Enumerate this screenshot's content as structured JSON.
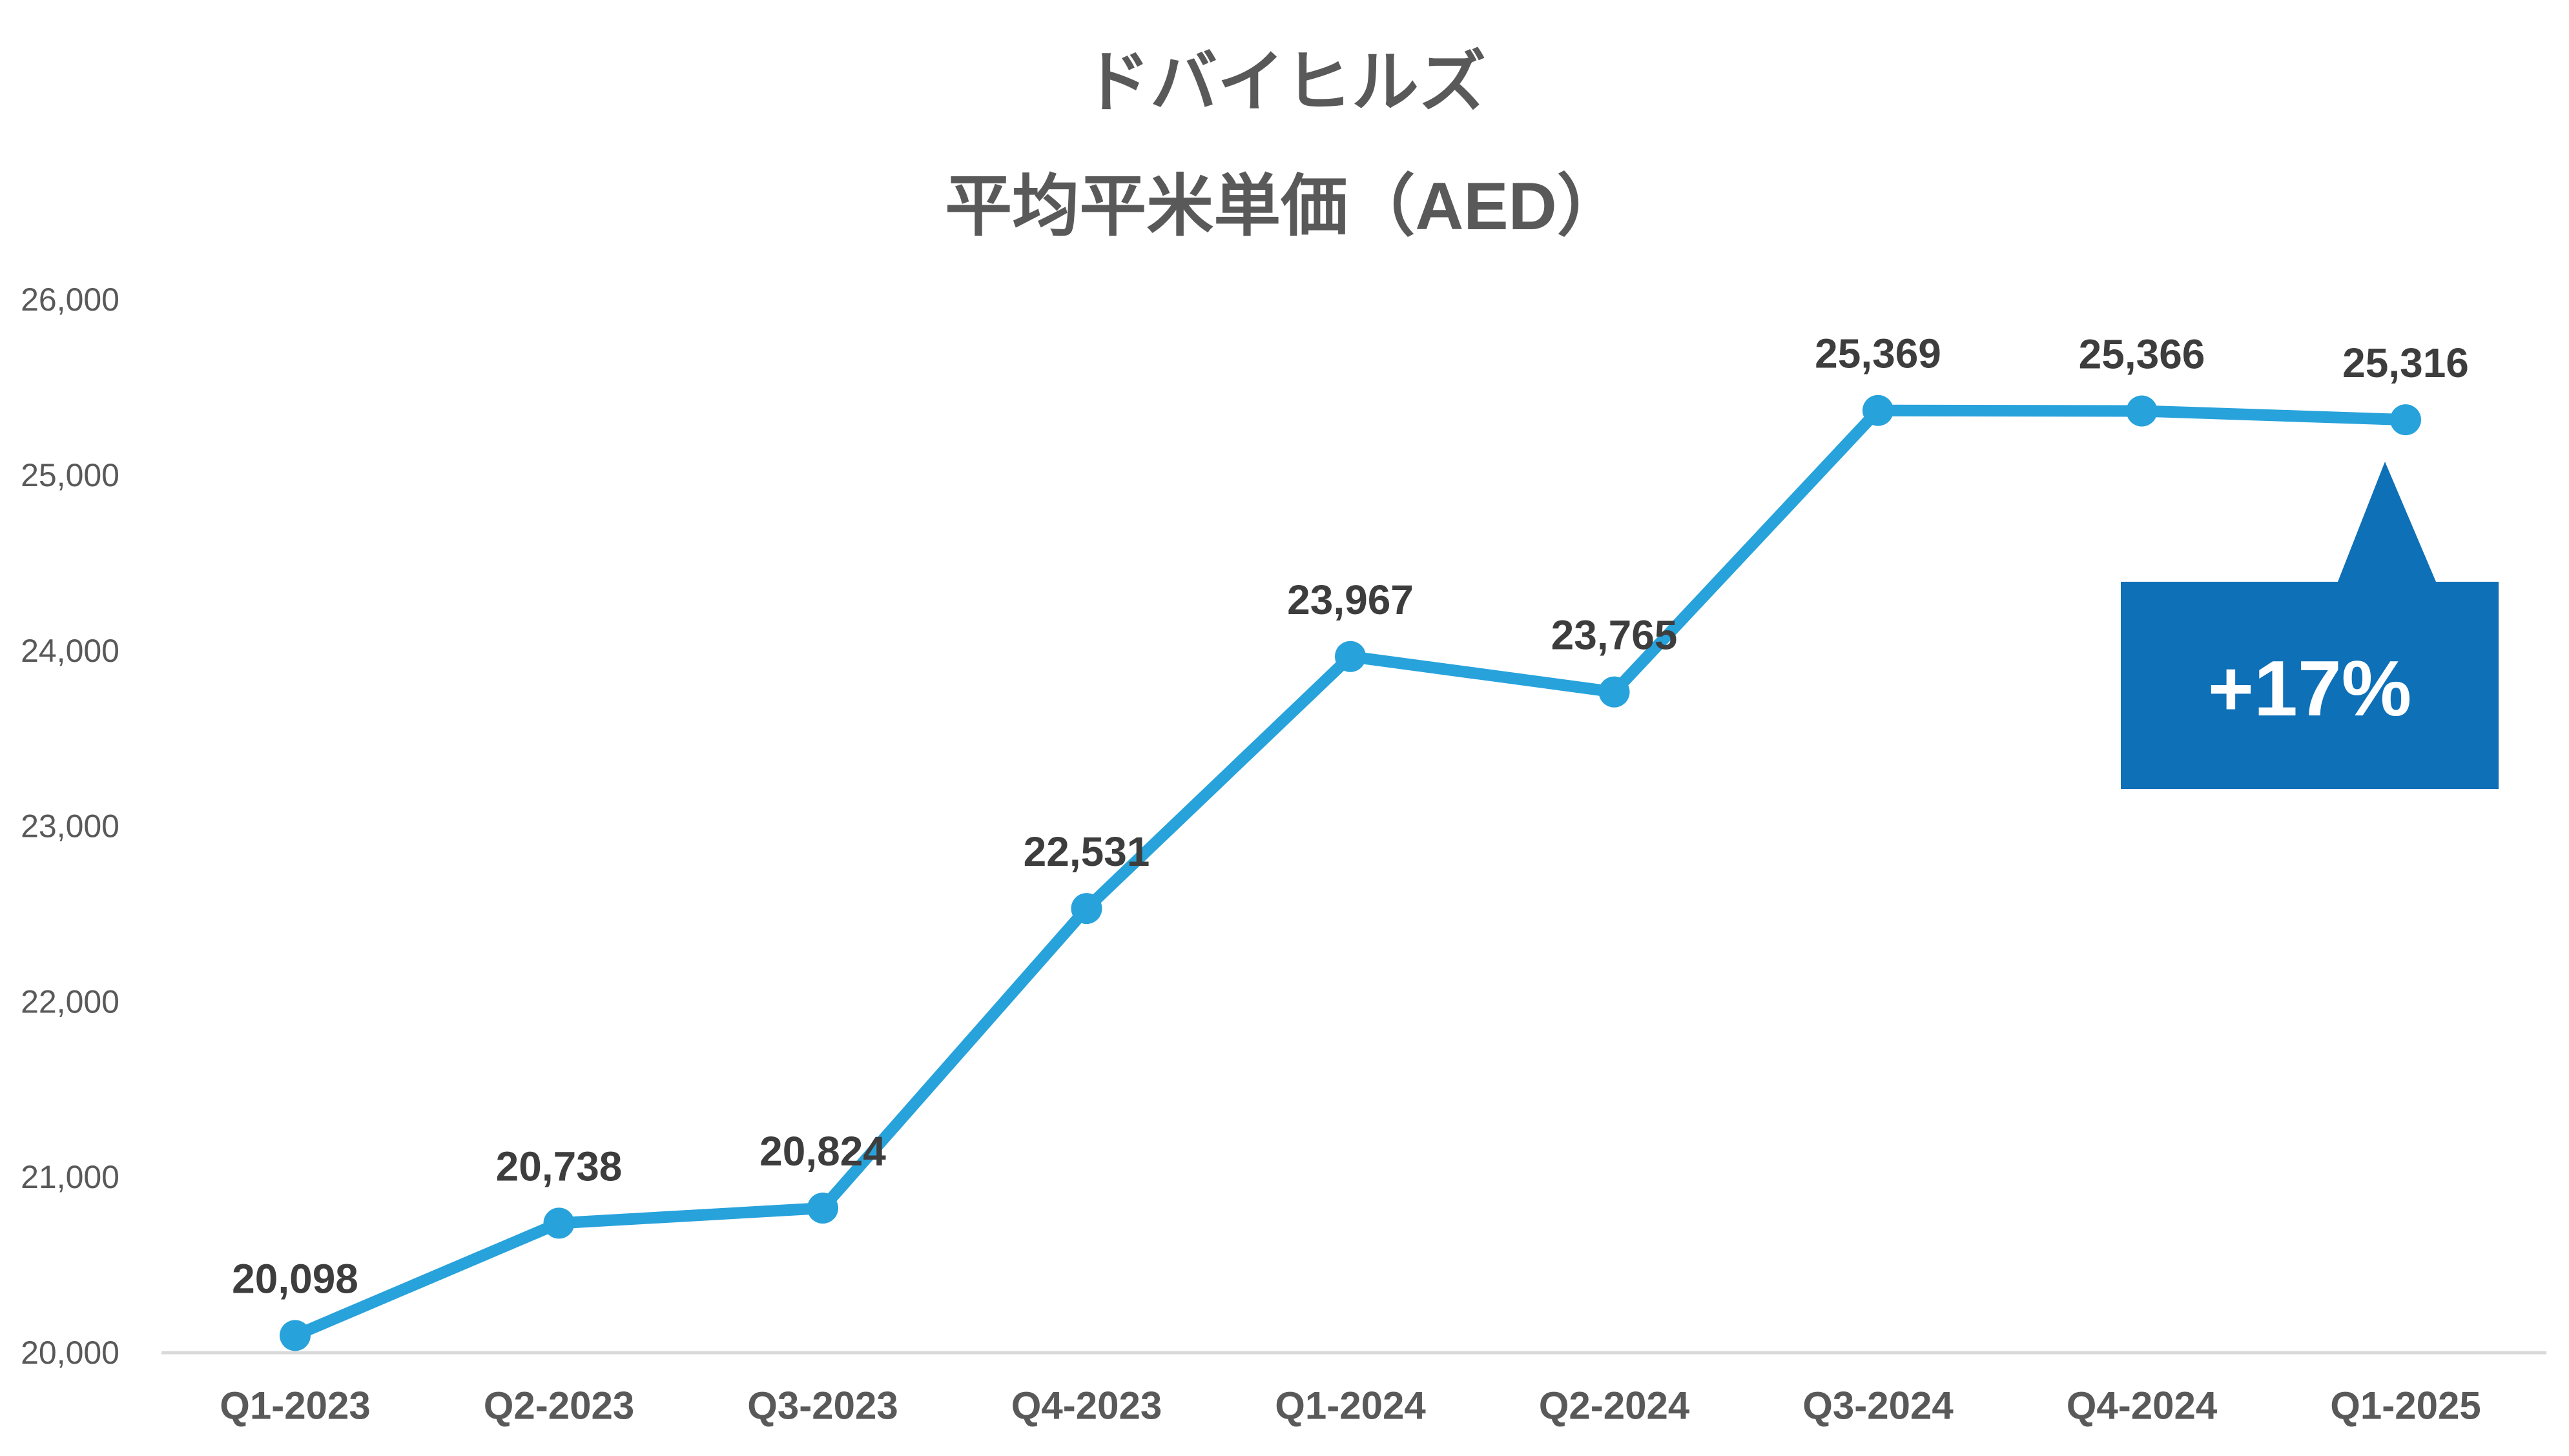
{
  "page": {
    "background": "#FFFFFF"
  },
  "title": {
    "line1": "ドバイヒルズ",
    "line2": "平均平米単価（AED）"
  },
  "chart_data": {
    "type": "line",
    "title": "ドバイヒルズ 平均平米単価（AED）",
    "categories": [
      "Q1-2023",
      "Q2-2023",
      "Q3-2023",
      "Q4-2023",
      "Q1-2024",
      "Q2-2024",
      "Q3-2024",
      "Q4-2024",
      "Q1-2025"
    ],
    "values": [
      20098,
      20738,
      20824,
      22531,
      23967,
      23765,
      25369,
      25366,
      25316
    ],
    "value_labels": [
      "20,098",
      "20,738",
      "20,824",
      "22,531",
      "23,967",
      "23,765",
      "25,369",
      "25,366",
      "25,316"
    ],
    "xlabel": "",
    "ylabel": "",
    "y_axis": {
      "min": 20000,
      "max": 26000,
      "tick_step": 1000,
      "tick_labels": [
        "20,000",
        "21,000",
        "22,000",
        "23,000",
        "24,000",
        "25,000",
        "26,000"
      ]
    },
    "grid": false,
    "legend": false,
    "annotation": {
      "text": "+17%",
      "attached_to": "Q1-2025"
    },
    "colors": {
      "line": "#27A2DB",
      "marker": "#27A2DB",
      "callout": "#0E70B7",
      "callout_text": "#FFFFFF",
      "axis_line": "#D9D9D9",
      "y_tick_label": "#595959",
      "x_tick_label": "#595959",
      "data_label": "#3D3D3D",
      "title": "#595959"
    }
  }
}
